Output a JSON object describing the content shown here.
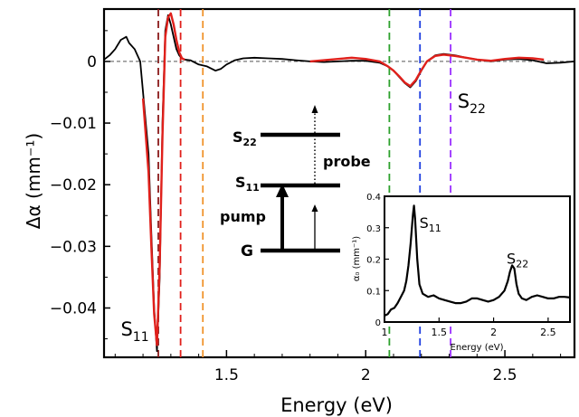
{
  "chart_data": [
    {
      "type": "line",
      "xlabel": "Energy (eV)",
      "ylabel": "Δα (mm⁻¹)",
      "xlim": [
        1.06,
        2.75
      ],
      "ylim": [
        -0.048,
        0.0085
      ],
      "x_ticks": [
        {
          "value": 1.5,
          "label": "1.5"
        },
        {
          "value": 2.0,
          "label": "2"
        },
        {
          "value": 2.5,
          "label": "2.5"
        }
      ],
      "y_ticks": [
        {
          "value": 0,
          "label": "0"
        },
        {
          "value": -0.01,
          "label": "−0.01"
        },
        {
          "value": -0.02,
          "label": "−0.02"
        },
        {
          "value": -0.03,
          "label": "−0.03"
        },
        {
          "value": -0.04,
          "label": "−0.04"
        }
      ],
      "zero_line": true,
      "grid": false,
      "series": [
        {
          "color": "#000000",
          "x": [
            1.06,
            1.08,
            1.1,
            1.12,
            1.14,
            1.15,
            1.17,
            1.19,
            1.2,
            1.22,
            1.23,
            1.24,
            1.25,
            1.26,
            1.27,
            1.28,
            1.29,
            1.3,
            1.31,
            1.32,
            1.33,
            1.34,
            1.35,
            1.37,
            1.4,
            1.43,
            1.46,
            1.48,
            1.5,
            1.53,
            1.56,
            1.6,
            1.65,
            1.7,
            1.75,
            1.8,
            1.85,
            1.9,
            1.95,
            2.0,
            2.05,
            2.08,
            2.1,
            2.12,
            2.14,
            2.16,
            2.18,
            2.2,
            2.22,
            2.25,
            2.28,
            2.32,
            2.36,
            2.4,
            2.45,
            2.5,
            2.55,
            2.6,
            2.65,
            2.7,
            2.75
          ],
          "y": [
            0.0003,
            0.001,
            0.002,
            0.0035,
            0.004,
            0.003,
            0.002,
            0.0,
            -0.005,
            -0.015,
            -0.028,
            -0.04,
            -0.047,
            -0.035,
            -0.01,
            0.005,
            0.0075,
            0.006,
            0.004,
            0.002,
            0.001,
            0.0005,
            0.0003,
            0.0002,
            -0.0005,
            -0.0008,
            -0.0015,
            -0.0012,
            -0.0005,
            0.0002,
            0.0005,
            0.0006,
            0.0005,
            0.0004,
            0.0002,
            0.0,
            -0.0001,
            0.0,
            0.0001,
            0.0001,
            -0.0002,
            -0.0008,
            -0.0015,
            -0.0025,
            -0.0035,
            -0.0042,
            -0.0032,
            -0.0015,
            0.0,
            0.001,
            0.0012,
            0.001,
            0.0006,
            0.0003,
            0.0,
            0.0003,
            0.0004,
            0.0002,
            -0.0003,
            -0.0002,
            0.0
          ]
        },
        {
          "color": "#e0201b",
          "x": [
            1.2,
            1.22,
            1.23,
            1.24,
            1.25,
            1.26,
            1.27,
            1.28,
            1.29,
            1.3,
            1.31,
            1.32,
            1.33,
            1.34,
            1.35
          ],
          "y": [
            -0.006,
            -0.018,
            -0.03,
            -0.041,
            -0.046,
            -0.033,
            -0.012,
            0.004,
            0.0072,
            0.0078,
            0.006,
            0.0035,
            0.0015,
            0.0005,
            0.0003
          ]
        },
        {
          "color": "#e0201b",
          "x": [
            1.8,
            1.85,
            1.9,
            1.95,
            2.0,
            2.05,
            2.08,
            2.1,
            2.12,
            2.14,
            2.16,
            2.18,
            2.2,
            2.22,
            2.25,
            2.28,
            2.32,
            2.36,
            2.4,
            2.45,
            2.5,
            2.55,
            2.6,
            2.64
          ],
          "y": [
            0.0,
            0.0002,
            0.0004,
            0.0006,
            0.0004,
            0.0,
            -0.0008,
            -0.0015,
            -0.0024,
            -0.0034,
            -0.004,
            -0.003,
            -0.0014,
            0.0,
            0.0009,
            0.0011,
            0.0009,
            0.0006,
            0.0003,
            0.0001,
            0.0004,
            0.0006,
            0.0005,
            0.0003
          ]
        }
      ],
      "vertical_lines": [
        {
          "x": 1.255,
          "color": "#8b1a1a"
        },
        {
          "x": 1.335,
          "color": "#e0201b"
        },
        {
          "x": 1.415,
          "color": "#f0932b"
        },
        {
          "x": 2.085,
          "color": "#2ca02c"
        },
        {
          "x": 2.195,
          "color": "#1f3fe0"
        },
        {
          "x": 2.305,
          "color": "#9b30ff"
        }
      ],
      "annotations": [
        {
          "text": "S11",
          "main": "S",
          "sub": "11",
          "x": 1.12,
          "y": -0.0445
        },
        {
          "text": "S22",
          "main": "S",
          "sub": "22",
          "x": 2.33,
          "y": -0.0075
        }
      ]
    },
    {
      "type": "line",
      "xlabel": "Energy (eV)",
      "ylabel": "α₀ (mm⁻¹)",
      "xlim": [
        1.0,
        2.7
      ],
      "ylim": [
        0,
        0.4
      ],
      "x_ticks": [
        {
          "value": 1.0,
          "label": "1"
        },
        {
          "value": 1.5,
          "label": "1.5"
        },
        {
          "value": 2.0,
          "label": "2"
        },
        {
          "value": 2.5,
          "label": "2.5"
        }
      ],
      "y_ticks": [
        {
          "value": 0,
          "label": "0"
        },
        {
          "value": 0.1,
          "label": "0.1"
        },
        {
          "value": 0.2,
          "label": "0.2"
        },
        {
          "value": 0.3,
          "label": "0.3"
        },
        {
          "value": 0.4,
          "label": "0.4"
        }
      ],
      "series": [
        {
          "color": "#000000",
          "x": [
            1.0,
            1.03,
            1.06,
            1.09,
            1.12,
            1.15,
            1.18,
            1.2,
            1.22,
            1.24,
            1.26,
            1.27,
            1.28,
            1.3,
            1.32,
            1.35,
            1.4,
            1.45,
            1.5,
            1.55,
            1.6,
            1.65,
            1.7,
            1.75,
            1.8,
            1.85,
            1.9,
            1.95,
            2.0,
            2.05,
            2.1,
            2.13,
            2.15,
            2.17,
            2.19,
            2.21,
            2.23,
            2.26,
            2.3,
            2.35,
            2.4,
            2.45,
            2.5,
            2.55,
            2.6,
            2.65,
            2.7
          ],
          "y": [
            0.02,
            0.025,
            0.04,
            0.045,
            0.06,
            0.08,
            0.1,
            0.13,
            0.18,
            0.25,
            0.34,
            0.37,
            0.33,
            0.2,
            0.12,
            0.09,
            0.08,
            0.085,
            0.075,
            0.07,
            0.065,
            0.06,
            0.06,
            0.065,
            0.075,
            0.075,
            0.07,
            0.065,
            0.07,
            0.08,
            0.1,
            0.13,
            0.16,
            0.18,
            0.17,
            0.12,
            0.09,
            0.075,
            0.07,
            0.08,
            0.085,
            0.08,
            0.075,
            0.075,
            0.08,
            0.08,
            0.078
          ]
        }
      ],
      "annotations": [
        {
          "text": "S11",
          "main": "S",
          "sub": "11",
          "x": 1.32,
          "y": 0.3
        },
        {
          "text": "S22",
          "main": "S",
          "sub": "22",
          "x": 2.12,
          "y": 0.185
        }
      ]
    }
  ],
  "diagram": {
    "levels": [
      {
        "main": "S",
        "sub": "22"
      },
      {
        "main": "S",
        "sub": "11"
      },
      {
        "main": "G",
        "sub": ""
      }
    ],
    "pump_label": "pump",
    "probe_label": "probe"
  }
}
